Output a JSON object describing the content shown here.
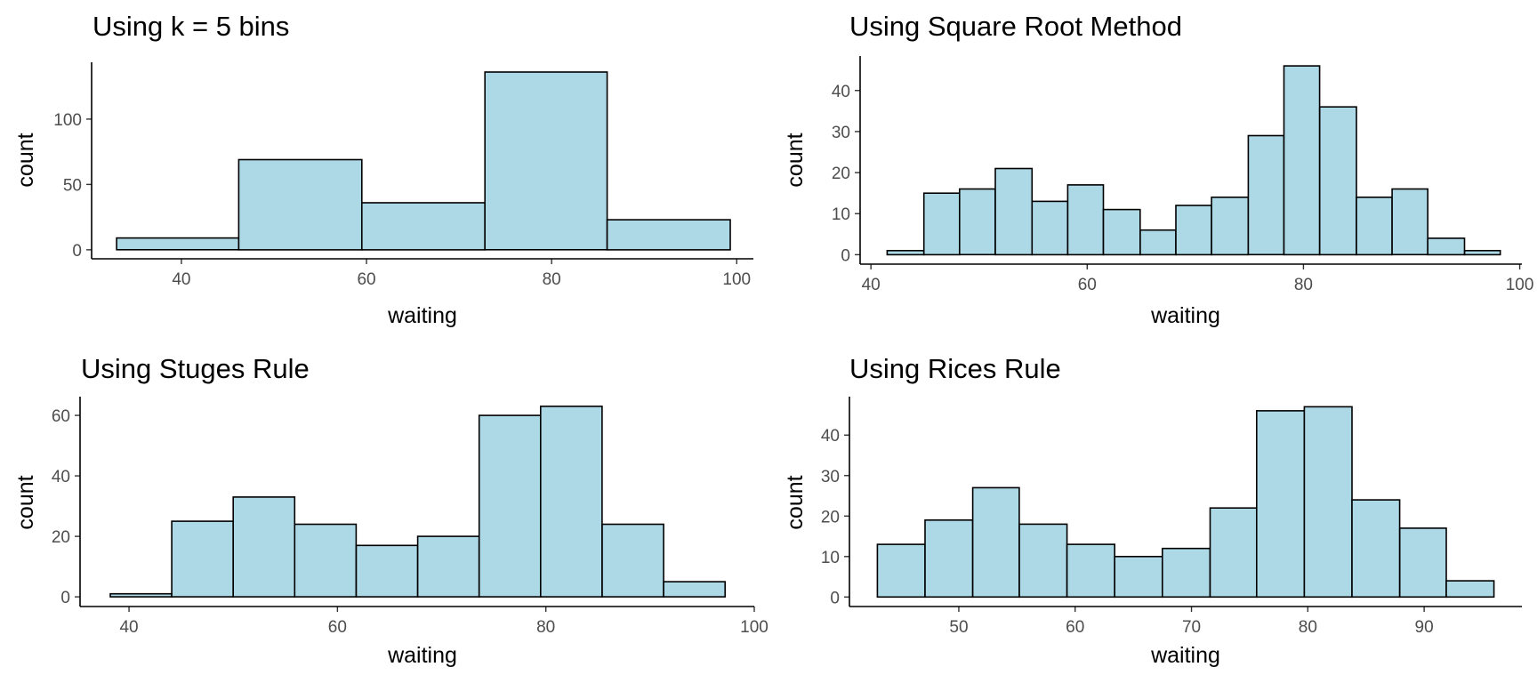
{
  "colors": {
    "bar_fill": "#add8e6",
    "bar_stroke": "#000000",
    "axis": "#000000",
    "tick_text": "#4d4d4d"
  },
  "chart_data": [
    {
      "type": "bar",
      "title": "Using k = 5 bins",
      "xlabel": "waiting",
      "ylabel": "count",
      "xlim": [
        30.3,
        101.8
      ],
      "ylim": [
        -6.9,
        143.5
      ],
      "xticks": [
        40,
        60,
        80,
        100
      ],
      "yticks": [
        0,
        50,
        100
      ],
      "grid": false,
      "bins": [
        {
          "x0": 33.0,
          "x1": 46.2,
          "count": 9
        },
        {
          "x0": 46.2,
          "x1": 59.5,
          "count": 69
        },
        {
          "x0": 59.5,
          "x1": 72.8,
          "count": 36
        },
        {
          "x0": 72.8,
          "x1": 86.0,
          "count": 136
        },
        {
          "x0": 86.0,
          "x1": 99.3,
          "count": 23
        }
      ]
    },
    {
      "type": "bar",
      "title": "Using Square Root Method",
      "xlabel": "waiting",
      "ylabel": "count",
      "xlim": [
        39.0,
        100.2
      ],
      "ylim": [
        -2.3,
        48.4
      ],
      "xticks": [
        40,
        60,
        80,
        100
      ],
      "yticks": [
        0,
        10,
        20,
        30,
        40
      ],
      "grid": false,
      "bins": [
        {
          "x0": 41.5,
          "x1": 44.9,
          "count": 1
        },
        {
          "x0": 44.9,
          "x1": 48.2,
          "count": 15
        },
        {
          "x0": 48.2,
          "x1": 51.5,
          "count": 16
        },
        {
          "x0": 51.5,
          "x1": 54.9,
          "count": 21
        },
        {
          "x0": 54.9,
          "x1": 58.2,
          "count": 13
        },
        {
          "x0": 58.2,
          "x1": 61.5,
          "count": 17
        },
        {
          "x0": 61.5,
          "x1": 64.9,
          "count": 11
        },
        {
          "x0": 64.9,
          "x1": 68.2,
          "count": 6
        },
        {
          "x0": 68.2,
          "x1": 71.5,
          "count": 12
        },
        {
          "x0": 71.5,
          "x1": 74.9,
          "count": 14
        },
        {
          "x0": 74.9,
          "x1": 78.2,
          "count": 29
        },
        {
          "x0": 78.2,
          "x1": 81.5,
          "count": 46
        },
        {
          "x0": 81.5,
          "x1": 84.9,
          "count": 36
        },
        {
          "x0": 84.9,
          "x1": 88.2,
          "count": 14
        },
        {
          "x0": 88.2,
          "x1": 91.5,
          "count": 16
        },
        {
          "x0": 91.5,
          "x1": 94.9,
          "count": 4
        },
        {
          "x0": 94.9,
          "x1": 98.2,
          "count": 1
        }
      ]
    },
    {
      "type": "bar",
      "title": "Using Stuges Rule",
      "xlabel": "waiting",
      "ylabel": "count",
      "xlim": [
        35.3,
        100.0
      ],
      "ylim": [
        -3.2,
        66.2
      ],
      "xticks": [
        40,
        60,
        80,
        100
      ],
      "yticks": [
        0,
        20,
        40,
        60
      ],
      "grid": false,
      "bins": [
        {
          "x0": 38.2,
          "x1": 44.1,
          "count": 1
        },
        {
          "x0": 44.1,
          "x1": 50.0,
          "count": 25
        },
        {
          "x0": 50.0,
          "x1": 55.9,
          "count": 33
        },
        {
          "x0": 55.9,
          "x1": 61.8,
          "count": 24
        },
        {
          "x0": 61.8,
          "x1": 67.7,
          "count": 17
        },
        {
          "x0": 67.7,
          "x1": 73.6,
          "count": 20
        },
        {
          "x0": 73.6,
          "x1": 79.5,
          "count": 60
        },
        {
          "x0": 79.5,
          "x1": 85.4,
          "count": 63
        },
        {
          "x0": 85.4,
          "x1": 91.3,
          "count": 24
        },
        {
          "x0": 91.3,
          "x1": 97.2,
          "count": 5
        }
      ]
    },
    {
      "type": "bar",
      "title": "Using Rices Rule",
      "xlabel": "waiting",
      "ylabel": "count",
      "xlim": [
        40.6,
        98.4
      ],
      "ylim": [
        -2.35,
        49.5
      ],
      "xticks": [
        50,
        60,
        70,
        80,
        90
      ],
      "yticks": [
        0,
        10,
        20,
        30,
        40
      ],
      "grid": false,
      "bins": [
        {
          "x0": 43.0,
          "x1": 47.1,
          "count": 13
        },
        {
          "x0": 47.1,
          "x1": 51.2,
          "count": 19
        },
        {
          "x0": 51.2,
          "x1": 55.2,
          "count": 27
        },
        {
          "x0": 55.2,
          "x1": 59.3,
          "count": 18
        },
        {
          "x0": 59.3,
          "x1": 63.4,
          "count": 13
        },
        {
          "x0": 63.4,
          "x1": 67.5,
          "count": 10
        },
        {
          "x0": 67.5,
          "x1": 71.6,
          "count": 12
        },
        {
          "x0": 71.6,
          "x1": 75.6,
          "count": 22
        },
        {
          "x0": 75.6,
          "x1": 79.7,
          "count": 46
        },
        {
          "x0": 79.7,
          "x1": 83.8,
          "count": 47
        },
        {
          "x0": 83.8,
          "x1": 87.9,
          "count": 24
        },
        {
          "x0": 87.9,
          "x1": 91.9,
          "count": 17
        },
        {
          "x0": 91.9,
          "x1": 96.0,
          "count": 4
        }
      ]
    }
  ]
}
